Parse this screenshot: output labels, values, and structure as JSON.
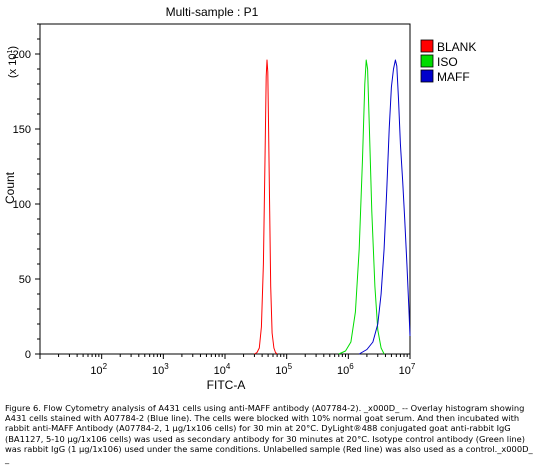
{
  "chart_data": {
    "type": "line",
    "title": "Multi-sample : P1",
    "xlabel": "FITC-A",
    "ylabel": "Count",
    "y_multiplier": "(x 10",
    "y_multiplier_exp": "1",
    "y_multiplier_close": ")",
    "x_scale": "log",
    "xlim": [
      10,
      10000000
    ],
    "ylim": [
      0,
      220
    ],
    "x_ticks": [
      {
        "base": "10",
        "exp": "2",
        "value": 100
      },
      {
        "base": "10",
        "exp": "3",
        "value": 1000
      },
      {
        "base": "10",
        "exp": "4",
        "value": 10000
      },
      {
        "base": "10",
        "exp": "5",
        "value": 100000
      },
      {
        "base": "10",
        "exp": "6",
        "value": 1000000
      },
      {
        "base": "10",
        "exp": "7",
        "value": 10000000
      }
    ],
    "y_ticks": [
      {
        "label": "0",
        "value": 0
      },
      {
        "label": "50",
        "value": 50
      },
      {
        "label": "100",
        "value": 100
      },
      {
        "label": "150",
        "value": 150
      },
      {
        "label": "200",
        "value": 200
      }
    ],
    "grid": false,
    "legend_position": "right",
    "series": [
      {
        "name": "BLANK",
        "color": "#ff0000",
        "x": [
          30000,
          33000,
          36000,
          39000,
          42000,
          44500,
          46500,
          48000,
          49500,
          51000,
          53000,
          55000,
          58000,
          62000,
          66000,
          70000
        ],
        "y": [
          0,
          1,
          4,
          18,
          60,
          130,
          185,
          196,
          188,
          150,
          95,
          45,
          14,
          4,
          1,
          0
        ]
      },
      {
        "name": "ISO",
        "color": "#00dd00",
        "x": [
          700000,
          900000,
          1100000,
          1300000,
          1500000,
          1700000,
          1850000,
          1950000,
          2050000,
          2200000,
          2400000,
          2700000,
          3000000,
          3400000,
          3800000
        ],
        "y": [
          0,
          2,
          8,
          28,
          70,
          130,
          180,
          196,
          190,
          150,
          95,
          45,
          16,
          4,
          0
        ]
      },
      {
        "name": "MAFF",
        "color": "#0000cc",
        "x": [
          1500000,
          2000000,
          2500000,
          3000000,
          3400000,
          3800000,
          4200000,
          4600000,
          5000000,
          5400000,
          5800000,
          6100000,
          6500000,
          7000000,
          7600000,
          8200000,
          8900000,
          9600000,
          10000000
        ],
        "y": [
          0,
          3,
          8,
          20,
          40,
          70,
          110,
          150,
          178,
          190,
          196,
          192,
          170,
          140,
          115,
          90,
          60,
          30,
          12
        ]
      }
    ]
  },
  "caption": "Figure 6. Flow Cytometry analysis of A431 cells using anti-MAFF antibody (A07784-2). _x000D_ -- Overlay histogram showing A431 cells stained with A07784-2 (Blue line). The cells were blocked with 10% normal goat serum. And then incubated with rabbit anti-MAFF Antibody (A07784-2, 1 μg/1x106 cells) for 30 min at 20°C. DyLight®488 conjugated goat anti-rabbit IgG (BA1127, 5-10 μg/1x106 cells) was used as secondary antibody for 30 minutes at 20°C. Isotype control antibody (Green line) was rabbit IgG (1 μg/1x106) used under the same conditions. Unlabelled sample (Red line) was also used as a control._x000D_ _"
}
